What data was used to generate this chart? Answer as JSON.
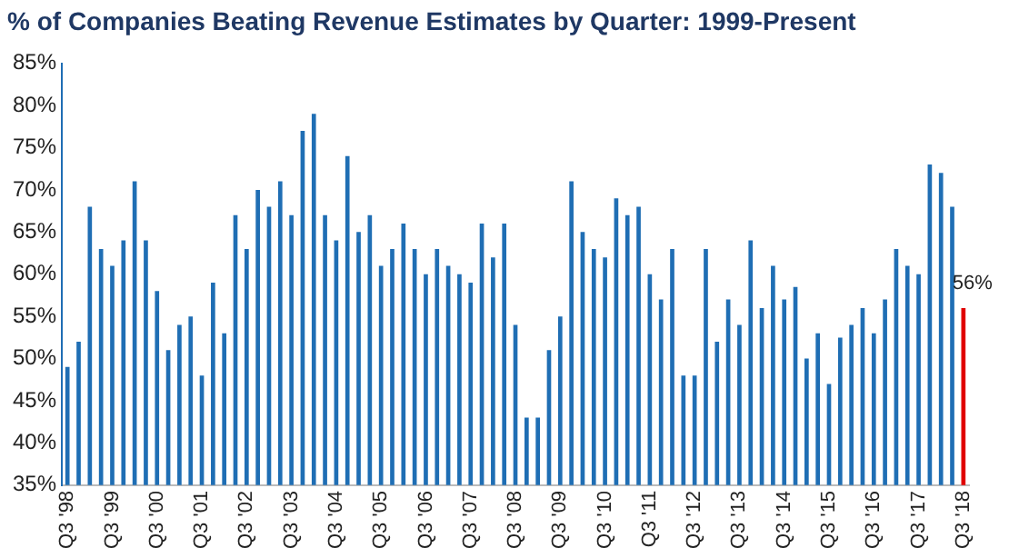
{
  "chart_data": {
    "type": "bar",
    "title": "% of Companies Beating Revenue Estimates by Quarter: 1999-Present",
    "categories": [
      "Q3 '98",
      null,
      null,
      null,
      "Q3 '99",
      null,
      null,
      null,
      "Q3 '00",
      null,
      null,
      null,
      "Q3 '01",
      null,
      null,
      null,
      "Q3 '02",
      null,
      null,
      null,
      "Q3 '03",
      null,
      null,
      null,
      "Q3 '04",
      null,
      null,
      null,
      "Q3 '05",
      null,
      null,
      null,
      "Q3 '06",
      null,
      null,
      null,
      "Q3 '07",
      null,
      null,
      null,
      "Q3 '08",
      null,
      null,
      null,
      "Q3 '09",
      null,
      null,
      null,
      "Q3 '10",
      null,
      null,
      null,
      "Q3 '11",
      null,
      null,
      null,
      "Q3 '12",
      null,
      null,
      null,
      "Q3 '13",
      null,
      null,
      null,
      "Q3 '14",
      null,
      null,
      null,
      "Q3 '15",
      null,
      null,
      null,
      "Q3 '16",
      null,
      null,
      null,
      "Q3 '17",
      null,
      null,
      null,
      "Q3 '18"
    ],
    "values": [
      49,
      52,
      68,
      63,
      61,
      64,
      71,
      64,
      58,
      51,
      54,
      55,
      48,
      59,
      53,
      67,
      63,
      70,
      68,
      71,
      67,
      77,
      79,
      67,
      64,
      74,
      65,
      67,
      61,
      63,
      66,
      63,
      60,
      63,
      61,
      60,
      59,
      66,
      62,
      66,
      54,
      43,
      43,
      51,
      55,
      71,
      65,
      63,
      62,
      69,
      67,
      68,
      60,
      57,
      63,
      48,
      48,
      63,
      52,
      57,
      54,
      64,
      56,
      61,
      57,
      58.5,
      50,
      53,
      47,
      52.5,
      54,
      56,
      53,
      57,
      63,
      61,
      60,
      73,
      72,
      68,
      56
    ],
    "colors": [
      "#1f6eb4",
      "#1f6eb4",
      "#1f6eb4",
      "#1f6eb4",
      "#1f6eb4",
      "#1f6eb4",
      "#1f6eb4",
      "#1f6eb4",
      "#1f6eb4",
      "#1f6eb4",
      "#1f6eb4",
      "#1f6eb4",
      "#1f6eb4",
      "#1f6eb4",
      "#1f6eb4",
      "#1f6eb4",
      "#1f6eb4",
      "#1f6eb4",
      "#1f6eb4",
      "#1f6eb4",
      "#1f6eb4",
      "#1f6eb4",
      "#1f6eb4",
      "#1f6eb4",
      "#1f6eb4",
      "#1f6eb4",
      "#1f6eb4",
      "#1f6eb4",
      "#1f6eb4",
      "#1f6eb4",
      "#1f6eb4",
      "#1f6eb4",
      "#1f6eb4",
      "#1f6eb4",
      "#1f6eb4",
      "#1f6eb4",
      "#1f6eb4",
      "#1f6eb4",
      "#1f6eb4",
      "#1f6eb4",
      "#1f6eb4",
      "#1f6eb4",
      "#1f6eb4",
      "#1f6eb4",
      "#1f6eb4",
      "#1f6eb4",
      "#1f6eb4",
      "#1f6eb4",
      "#1f6eb4",
      "#1f6eb4",
      "#1f6eb4",
      "#1f6eb4",
      "#1f6eb4",
      "#1f6eb4",
      "#1f6eb4",
      "#1f6eb4",
      "#1f6eb4",
      "#1f6eb4",
      "#1f6eb4",
      "#1f6eb4",
      "#1f6eb4",
      "#1f6eb4",
      "#1f6eb4",
      "#1f6eb4",
      "#1f6eb4",
      "#1f6eb4",
      "#1f6eb4",
      "#1f6eb4",
      "#1f6eb4",
      "#1f6eb4",
      "#1f6eb4",
      "#1f6eb4",
      "#1f6eb4",
      "#1f6eb4",
      "#1f6eb4",
      "#1f6eb4",
      "#1f6eb4",
      "#1f6eb4",
      "#1f6eb4",
      "#1f6eb4",
      "#e00000"
    ],
    "value_labels": [
      null,
      null,
      null,
      null,
      null,
      null,
      null,
      null,
      null,
      null,
      null,
      null,
      null,
      null,
      null,
      null,
      null,
      null,
      null,
      null,
      null,
      null,
      null,
      null,
      null,
      null,
      null,
      null,
      null,
      null,
      null,
      null,
      null,
      null,
      null,
      null,
      null,
      null,
      null,
      null,
      null,
      null,
      null,
      null,
      null,
      null,
      null,
      null,
      null,
      null,
      null,
      null,
      null,
      null,
      null,
      null,
      null,
      null,
      null,
      null,
      null,
      null,
      null,
      null,
      null,
      null,
      null,
      null,
      null,
      null,
      null,
      null,
      null,
      null,
      null,
      null,
      null,
      null,
      null,
      null,
      "56%"
    ],
    "ylim": [
      35,
      85
    ],
    "yticks": [
      {
        "value": 35,
        "label": "35%"
      },
      {
        "value": 40,
        "label": "40%"
      },
      {
        "value": 45,
        "label": "45%"
      },
      {
        "value": 50,
        "label": "50%"
      },
      {
        "value": 55,
        "label": "55%"
      },
      {
        "value": 60,
        "label": "60%"
      },
      {
        "value": 65,
        "label": "65%"
      },
      {
        "value": 70,
        "label": "70%"
      },
      {
        "value": 75,
        "label": "75%"
      },
      {
        "value": 80,
        "label": "80%"
      },
      {
        "value": 85,
        "label": "85%"
      }
    ],
    "grid": false,
    "legend": false
  }
}
